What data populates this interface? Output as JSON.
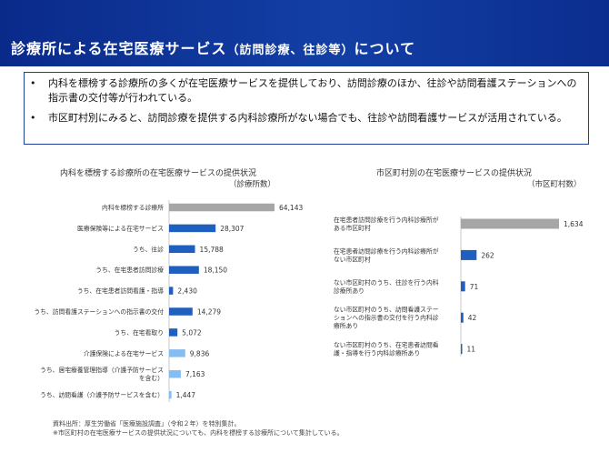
{
  "header": {
    "title_main": "診療所による在宅医療サービス",
    "title_paren": "（訪問診療、往診等）",
    "title_tail": "について"
  },
  "bullets": [
    "内科を標榜する診療所の多くが在宅医療サービスを提供しており、訪問診療のほか、往診や訪問看護ステーションへの指示書の交付等が行われている。",
    "市区町村別にみると、訪問診療を提供する内科診療所がない場合でも、往診や訪問看護サービスが活用されている。"
  ],
  "chart_data": [
    {
      "type": "bar",
      "orientation": "horizontal",
      "title": "内科を標榜する診療所の在宅医療サービスの提供状況",
      "unit": "（診療所数）",
      "categories": [
        "内科を標榜する診療所",
        "医療保険等による在宅サービス",
        "うち、往診",
        "うち、在宅患者訪問診療",
        "うち、在宅患者訪問看護・指導",
        "うち、訪問看護ステーションへの指示書の交付",
        "うち、在宅看取り",
        "介護保険による在宅サービス",
        "うち、居宅療養管理指導（介護予防サービスを含む）",
        "うち、訪問看護（介護予防サービスを含む）"
      ],
      "label_lines": [
        [
          "内科を標榜する診療所"
        ],
        [
          "医療保険等による在宅サービス"
        ],
        [
          "うち、往診"
        ],
        [
          "うち、在宅患者訪問診療"
        ],
        [
          "うち、在宅患者訪問看護・指導"
        ],
        [
          "うち、訪問看護ステーションへの指示書の交付"
        ],
        [
          "うち、在宅看取り"
        ],
        [
          "介護保険による在宅サービス"
        ],
        [
          "うち、居宅療養管理指導（介護予防サービス",
          "を含む）"
        ],
        [
          "うち、訪問看護（介護予防サービスを含む）"
        ]
      ],
      "values": [
        64143,
        28307,
        15788,
        18150,
        2430,
        14279,
        5072,
        9836,
        7163,
        1447
      ],
      "value_labels": [
        "64,143",
        "28,307",
        "15,788",
        "18,150",
        "2,430",
        "14,279",
        "5,072",
        "9,836",
        "7,163",
        "1,447"
      ],
      "bar_colors": [
        "#a6a6a6",
        "#1f5fbf",
        "#1f5fbf",
        "#1f5fbf",
        "#1f5fbf",
        "#1f5fbf",
        "#1f5fbf",
        "#86bdf0",
        "#86bdf0",
        "#86bdf0"
      ]
    },
    {
      "type": "bar",
      "orientation": "horizontal",
      "title": "市区町村別の在宅医療サービスの提供状況",
      "unit": "（市区町村数）",
      "categories": [
        "在宅患者訪問診療を行う内科診療所がある市区町村",
        "在宅患者訪問診療を行う内科診療所がない市区町村",
        "ない市区町村のうち、往診を行う内科診療所あり",
        "ない市区町村のうち、訪問看護ステーションへの指示書の交付を行う内科診療所あり",
        "ない市区町村のうち、在宅患者訪問看護・指導を行う内科診療所あり"
      ],
      "label_lines": [
        [
          "在宅患者訪問診療を行う内科診療所が",
          "ある市区町村"
        ],
        [
          "在宅患者訪問診療を行う内科診療所が",
          "ない市区町村"
        ],
        [
          "ない市区町村のうち、往診を行う内科",
          "診療所あり"
        ],
        [
          "ない市区町村のうち、訪問看護ステー",
          "ションへの指示書の交付を行う内科診",
          "療所あり"
        ],
        [
          "ない市区町村のうち、在宅患者訪問看",
          "護・指導を行う内科診療所あり"
        ]
      ],
      "values": [
        1634,
        262,
        71,
        42,
        11
      ],
      "value_labels": [
        "1,634",
        "262",
        "71",
        "42",
        "11"
      ],
      "bar_colors": [
        "#a6a6a6",
        "#1f5fbf",
        "#1f5fbf",
        "#1f5fbf",
        "#1f5fbf"
      ]
    }
  ],
  "footnotes": [
    "資料出所：厚生労働省「医療施設調査」（令和２年）を特別集計。",
    "※市区町村の在宅医療サービスの提供状況についても、内科を標榜する診療所について集計している。"
  ]
}
